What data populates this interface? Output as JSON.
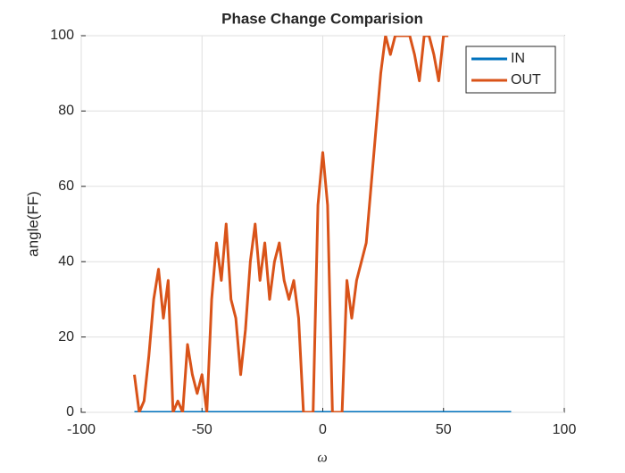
{
  "chart_data": {
    "type": "line",
    "title": "Phase Change Comparision",
    "xlabel": "ω",
    "ylabel": "angle(FF)",
    "x": [
      -78,
      -76,
      -74,
      -72,
      -70,
      -68,
      -66,
      -64,
      -62,
      -60,
      -58,
      -56,
      -54,
      -52,
      -50,
      -48,
      -46,
      -44,
      -42,
      -40,
      -38,
      -36,
      -34,
      -32,
      -30,
      -28,
      -26,
      -24,
      -22,
      -20,
      -18,
      -16,
      -14,
      -12,
      -10,
      -8,
      -6,
      -4,
      -2,
      0,
      2,
      4,
      6,
      8,
      10,
      12,
      14,
      16,
      18,
      20,
      22,
      24,
      26,
      28,
      30,
      32,
      34,
      36,
      38,
      40,
      42,
      44,
      46,
      48,
      50,
      52,
      54,
      56,
      58,
      60,
      62,
      64,
      66,
      68,
      70,
      72,
      74,
      76,
      78
    ],
    "series": [
      {
        "name": "IN",
        "color": "#0072bd",
        "values": [
          0,
          0,
          0,
          0,
          0,
          0,
          0,
          0,
          0,
          0,
          0,
          0,
          0,
          0,
          0,
          0,
          0,
          0,
          0,
          0,
          0,
          0,
          0,
          0,
          0,
          0,
          0,
          0,
          0,
          0,
          0,
          0,
          0,
          0,
          0,
          0,
          0,
          0,
          0,
          0,
          0,
          0,
          0,
          0,
          0,
          0,
          0,
          0,
          0,
          0,
          0,
          0,
          0,
          0,
          0,
          0,
          0,
          0,
          0,
          0,
          0,
          0,
          0,
          0,
          0,
          0,
          0,
          0,
          0,
          0,
          0,
          0,
          0,
          0,
          0,
          0,
          0,
          0,
          0
        ]
      },
      {
        "name": "OUT",
        "color": "#d95319",
        "values": [
          10,
          0,
          3,
          15,
          30,
          38,
          25,
          35,
          0,
          3,
          0,
          18,
          10,
          5,
          10,
          0,
          30,
          45,
          35,
          50,
          30,
          25,
          10,
          22,
          40,
          50,
          35,
          45,
          30,
          40,
          45,
          35,
          30,
          35,
          25,
          0,
          0,
          0,
          55,
          69,
          55,
          0,
          0,
          0,
          35,
          25,
          35,
          40,
          45,
          60,
          75,
          90,
          100,
          95,
          100,
          100,
          100,
          100,
          95,
          88,
          100,
          100,
          95,
          88,
          100,
          100,
          null,
          null,
          null,
          null,
          null,
          null,
          null,
          null,
          null,
          null,
          null,
          null,
          null
        ]
      }
    ],
    "xlim": [
      -100,
      100
    ],
    "xticks": [
      -100,
      -50,
      0,
      50,
      100
    ],
    "ylim": [
      0,
      100
    ],
    "yticks": [
      0,
      20,
      40,
      60,
      80,
      100
    ],
    "grid": true,
    "legend": "northeast"
  }
}
